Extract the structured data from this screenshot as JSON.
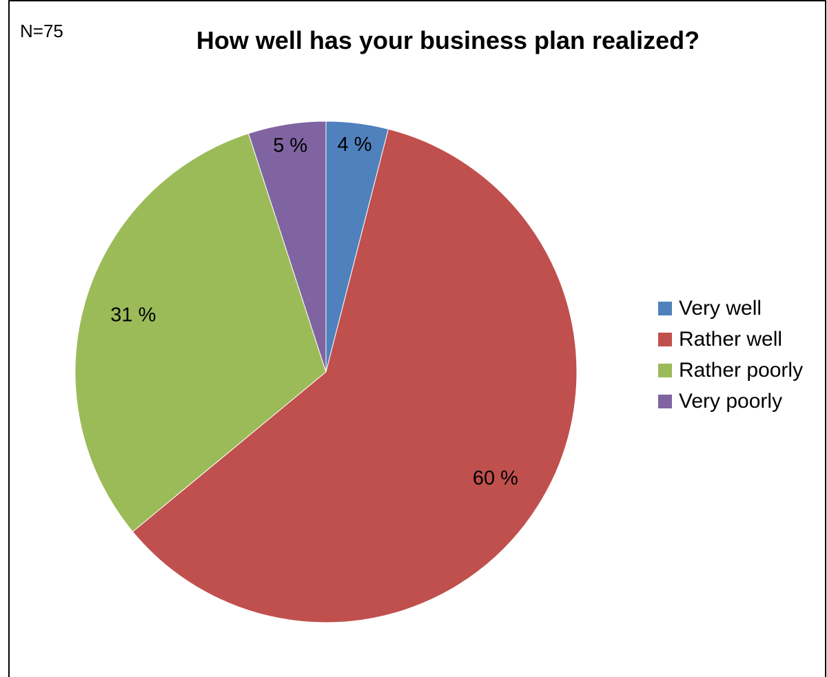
{
  "header": {
    "sample_note": "N=75"
  },
  "chart_data": {
    "type": "pie",
    "title": "How well has your business plan realized?",
    "legend_position": "right",
    "slices": [
      {
        "name": "Very well",
        "value": 4,
        "label": "4 %",
        "color": "#4F81BD"
      },
      {
        "name": "Rather well",
        "value": 60,
        "label": "60 %",
        "color": "#C0504D"
      },
      {
        "name": "Rather poorly",
        "value": 31,
        "label": "31 %",
        "color": "#9BBB59"
      },
      {
        "name": "Very poorly",
        "value": 5,
        "label": "5 %",
        "color": "#8064A2"
      }
    ]
  }
}
